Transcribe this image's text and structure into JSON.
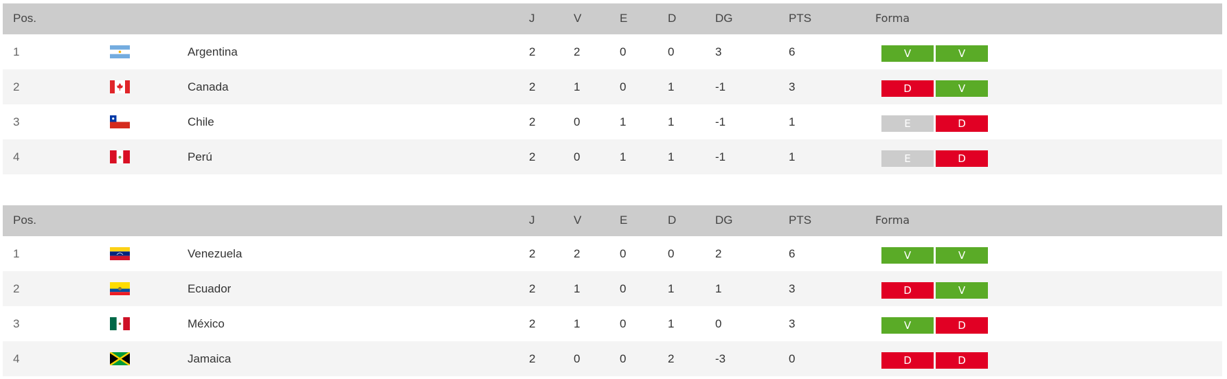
{
  "colors": {
    "V": "#5aab27",
    "D": "#e10024",
    "E": "#cccccc",
    "header": "#cccccc",
    "alt_row": "#f4f4f4"
  },
  "headers": {
    "pos": "Pos.",
    "j": "J",
    "v": "V",
    "e": "E",
    "d": "D",
    "dg": "DG",
    "pts": "PTS",
    "forma": "Forma"
  },
  "groups": [
    {
      "rows": [
        {
          "pos": "1",
          "flag": "argentina-flag-icon",
          "team": "Argentina",
          "j": "2",
          "v": "2",
          "e": "0",
          "d": "0",
          "dg": "3",
          "pts": "6",
          "form": [
            "V",
            "V"
          ]
        },
        {
          "pos": "2",
          "flag": "canada-flag-icon",
          "team": "Canada",
          "j": "2",
          "v": "1",
          "e": "0",
          "d": "1",
          "dg": "-1",
          "pts": "3",
          "form": [
            "D",
            "V"
          ]
        },
        {
          "pos": "3",
          "flag": "chile-flag-icon",
          "team": "Chile",
          "j": "2",
          "v": "0",
          "e": "1",
          "d": "1",
          "dg": "-1",
          "pts": "1",
          "form": [
            "E",
            "D"
          ]
        },
        {
          "pos": "4",
          "flag": "peru-flag-icon",
          "team": "Perú",
          "j": "2",
          "v": "0",
          "e": "1",
          "d": "1",
          "dg": "-1",
          "pts": "1",
          "form": [
            "E",
            "D"
          ]
        }
      ]
    },
    {
      "rows": [
        {
          "pos": "1",
          "flag": "venezuela-flag-icon",
          "team": "Venezuela",
          "j": "2",
          "v": "2",
          "e": "0",
          "d": "0",
          "dg": "2",
          "pts": "6",
          "form": [
            "V",
            "V"
          ]
        },
        {
          "pos": "2",
          "flag": "ecuador-flag-icon",
          "team": "Ecuador",
          "j": "2",
          "v": "1",
          "e": "0",
          "d": "1",
          "dg": "1",
          "pts": "3",
          "form": [
            "D",
            "V"
          ]
        },
        {
          "pos": "3",
          "flag": "mexico-flag-icon",
          "team": "México",
          "j": "2",
          "v": "1",
          "e": "0",
          "d": "1",
          "dg": "0",
          "pts": "3",
          "form": [
            "V",
            "D"
          ]
        },
        {
          "pos": "4",
          "flag": "jamaica-flag-icon",
          "team": "Jamaica",
          "j": "2",
          "v": "0",
          "e": "0",
          "d": "2",
          "dg": "-3",
          "pts": "0",
          "form": [
            "D",
            "D"
          ]
        }
      ]
    }
  ]
}
